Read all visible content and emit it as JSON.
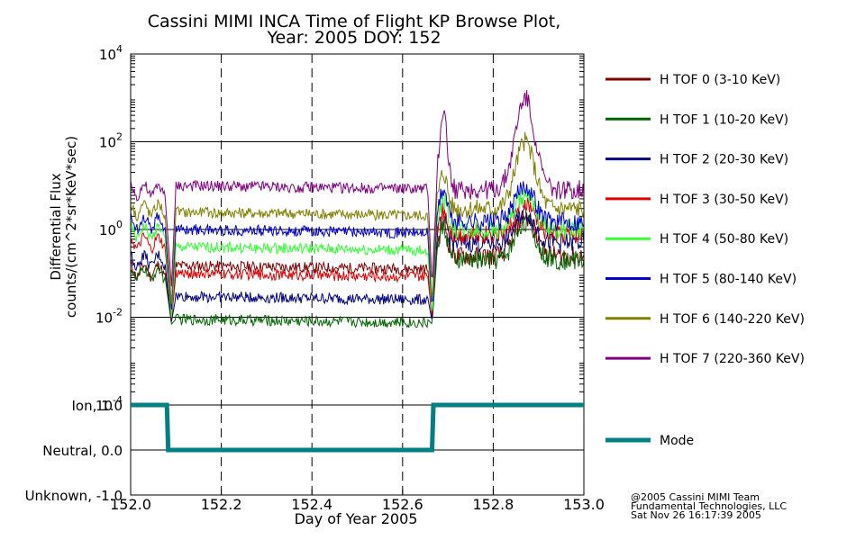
{
  "chart_data": [
    {
      "type": "line",
      "title_lines": [
        "Cassini MIMI INCA Time of Flight KP Browse Plot,",
        "Year: 2005 DOY: 152"
      ],
      "ylabel_lines": [
        "Differential Flux",
        "counts/(cm^2*sr*KeV*sec)"
      ],
      "yscale": "log",
      "ylim": [
        0.0001,
        10000
      ],
      "xlim": [
        152.0,
        153.0
      ],
      "y_ticks": [
        {
          "base": "10",
          "exp": "4",
          "value": 10000
        },
        {
          "base": "10",
          "exp": "2",
          "value": 100
        },
        {
          "base": "10",
          "exp": "0",
          "value": 1
        },
        {
          "base": "10",
          "exp": "-2",
          "value": 0.01
        },
        {
          "base": "10",
          "exp": "-4",
          "value": 0.0001
        }
      ],
      "grid": "horizontal solid at decades, vertical dashed at x ticks",
      "legend_position": "right",
      "series": [
        {
          "name": "H TOF 0 (3-10 KeV)",
          "color": "#800000",
          "plateau": 0.15,
          "dip": 0.008,
          "pre": 0.12,
          "post": 0.25,
          "peak1": 1.5,
          "peak2": 2.0
        },
        {
          "name": "H TOF 1 (10-20 KeV)",
          "color": "#006400",
          "plateau": 0.009,
          "dip": 0.007,
          "pre": 0.1,
          "post": 0.2,
          "peak1": 1.2,
          "peak2": 1.5
        },
        {
          "name": "H TOF 2 (20-30 KeV)",
          "color": "#000080",
          "plateau": 0.03,
          "dip": 0.008,
          "pre": 0.2,
          "post": 0.5,
          "peak1": 2.0,
          "peak2": 2.5
        },
        {
          "name": "H TOF 3 (30-50 KeV)",
          "color": "#e00000",
          "plateau": 0.1,
          "dip": 0.009,
          "pre": 0.5,
          "post": 0.8,
          "peak1": 3.0,
          "peak2": 4.0
        },
        {
          "name": "H TOF 4 (50-80 KeV)",
          "color": "#33ff33",
          "plateau": 0.4,
          "dip": 0.01,
          "pre": 0.9,
          "post": 1.0,
          "peak1": 5.0,
          "peak2": 6.0
        },
        {
          "name": "H TOF 5 (80-140 KeV)",
          "color": "#0000cc",
          "plateau": 1.0,
          "dip": 0.015,
          "pre": 1.5,
          "post": 1.5,
          "peak1": 8.0,
          "peak2": 10.0
        },
        {
          "name": "H TOF 6 (140-220 KeV)",
          "color": "#808000",
          "plateau": 2.5,
          "dip": 0.02,
          "pre": 3.0,
          "post": 3.0,
          "peak1": 20.0,
          "peak2": 100.0
        },
        {
          "name": "H TOF 7 (220-360 KeV)",
          "color": "#800080",
          "plateau": 10.0,
          "dip": 0.05,
          "pre": 8.0,
          "post": 8.0,
          "peak1": 500.0,
          "peak2": 1000.0
        }
      ]
    },
    {
      "type": "line",
      "xlim": [
        152.0,
        153.0
      ],
      "ylim": [
        -1.0,
        1.0
      ],
      "y_ticks": [
        {
          "label": "Ion, 1.0",
          "value": 1.0
        },
        {
          "label": "Neutral, 0.0",
          "value": 0.0
        },
        {
          "label": "Unknown, -1.0",
          "value": -1.0
        }
      ],
      "x_ticks": [
        "152.0",
        "152.2",
        "152.4",
        "152.6",
        "152.8",
        "153.0"
      ],
      "xlabel": "Day of Year 2005",
      "series": [
        {
          "name": "Mode",
          "color": "#008080",
          "x": [
            152.0,
            152.08,
            152.083,
            152.665,
            152.668,
            153.0
          ],
          "y": [
            1.0,
            1.0,
            0.0,
            0.0,
            1.0,
            1.0
          ]
        }
      ]
    }
  ],
  "footer_lines": [
    "@2005 Cassini MIMI Team",
    "Fundamental Technologies, LLC",
    "Sat Nov 26 16:17:39 2005"
  ]
}
